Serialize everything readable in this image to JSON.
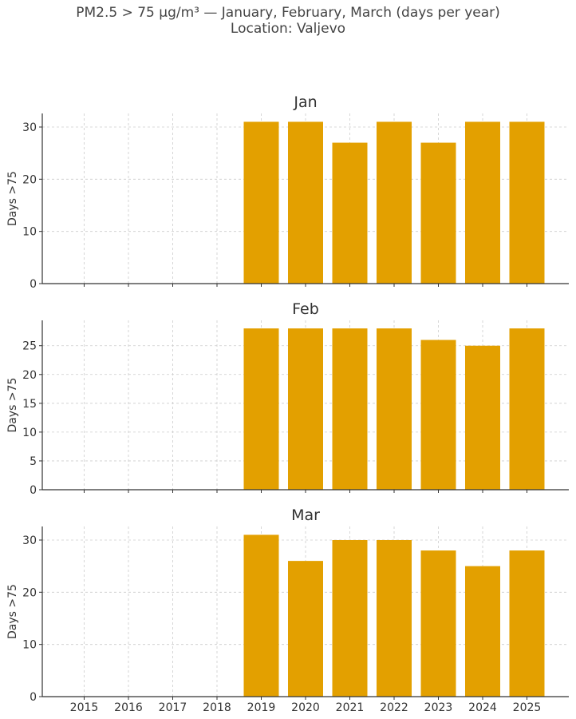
{
  "figure": {
    "title_line1": "PM2.5 > 75 µg/m³ — January, February, March (days per year)",
    "title_line2": "Location: Valjevo"
  },
  "colors": {
    "bar": "#E3A000",
    "grid": "#cccccc",
    "axis": "#333333"
  },
  "chart_data": [
    {
      "type": "bar",
      "title": "Jan",
      "ylabel": "Days >75",
      "categories": [
        "2015",
        "2016",
        "2017",
        "2018",
        "2019",
        "2020",
        "2021",
        "2022",
        "2023",
        "2024",
        "2025"
      ],
      "values": [
        0,
        0,
        0,
        0,
        31,
        31,
        27,
        31,
        27,
        31,
        31
      ],
      "ylim": [
        0,
        32.6
      ],
      "yticks": [
        0,
        10,
        20,
        30
      ],
      "grid": true
    },
    {
      "type": "bar",
      "title": "Feb",
      "ylabel": "Days >75",
      "categories": [
        "2015",
        "2016",
        "2017",
        "2018",
        "2019",
        "2020",
        "2021",
        "2022",
        "2023",
        "2024",
        "2025"
      ],
      "values": [
        0,
        0,
        0,
        0,
        28,
        28,
        28,
        28,
        26,
        25,
        28
      ],
      "ylim": [
        0,
        29.4
      ],
      "yticks": [
        0,
        5,
        10,
        15,
        20,
        25
      ],
      "grid": true
    },
    {
      "type": "bar",
      "title": "Mar",
      "ylabel": "Days >75",
      "categories": [
        "2015",
        "2016",
        "2017",
        "2018",
        "2019",
        "2020",
        "2021",
        "2022",
        "2023",
        "2024",
        "2025"
      ],
      "values": [
        0,
        0,
        0,
        0,
        31,
        26,
        30,
        30,
        28,
        25,
        28
      ],
      "ylim": [
        0,
        32.6
      ],
      "yticks": [
        0,
        10,
        20,
        30
      ],
      "grid": true,
      "show_xticklabels": true
    }
  ]
}
